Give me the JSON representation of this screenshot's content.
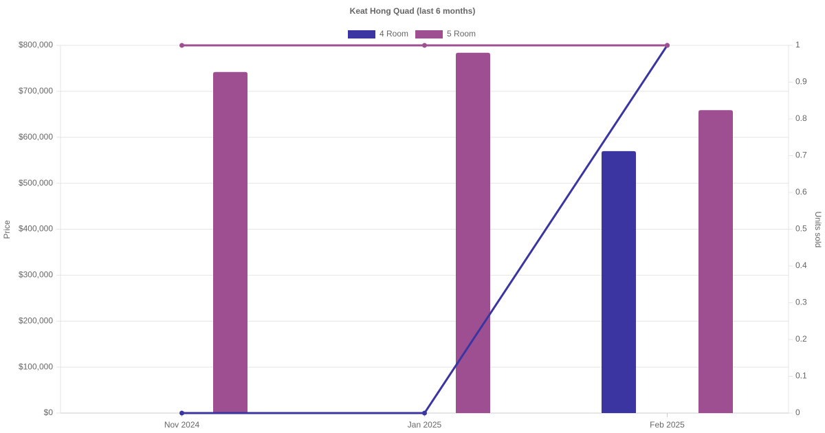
{
  "chart_data": {
    "type": "bar",
    "title": "Keat Hong Quad (last 6 months)",
    "categories": [
      "Nov 2024",
      "Jan 2025",
      "Feb 2025"
    ],
    "y_label": "Price",
    "y2_label": "Units sold",
    "series": [
      {
        "name": "4 Room",
        "color": "#3a35a0",
        "type": "bar",
        "values": [
          null,
          null,
          570000
        ]
      },
      {
        "name": "5 Room",
        "color": "#9e4f92",
        "type": "bar",
        "values": [
          742000,
          784000,
          659000
        ]
      },
      {
        "color": "#3a35a0",
        "type": "line",
        "axis": "y2",
        "values": [
          0,
          0,
          1
        ]
      },
      {
        "color": "#9e4f92",
        "type": "line",
        "axis": "y2",
        "values": [
          1,
          1,
          1
        ]
      }
    ],
    "ylim": [
      0,
      800000
    ],
    "yticks": [
      {
        "value": 0,
        "label": "$0"
      },
      {
        "value": 100000,
        "label": "$100,000"
      },
      {
        "value": 200000,
        "label": "$200,000"
      },
      {
        "value": 300000,
        "label": "$300,000"
      },
      {
        "value": 400000,
        "label": "$400,000"
      },
      {
        "value": 500000,
        "label": "$500,000"
      },
      {
        "value": 600000,
        "label": "$600,000"
      },
      {
        "value": 700000,
        "label": "$700,000"
      },
      {
        "value": 800000,
        "label": "$800,000"
      }
    ],
    "y2lim": [
      0,
      1
    ],
    "y2ticks": [
      0,
      0.1,
      0.2,
      0.3,
      0.4,
      0.5,
      0.6,
      0.7,
      0.8,
      0.9,
      1
    ],
    "grid": true
  }
}
